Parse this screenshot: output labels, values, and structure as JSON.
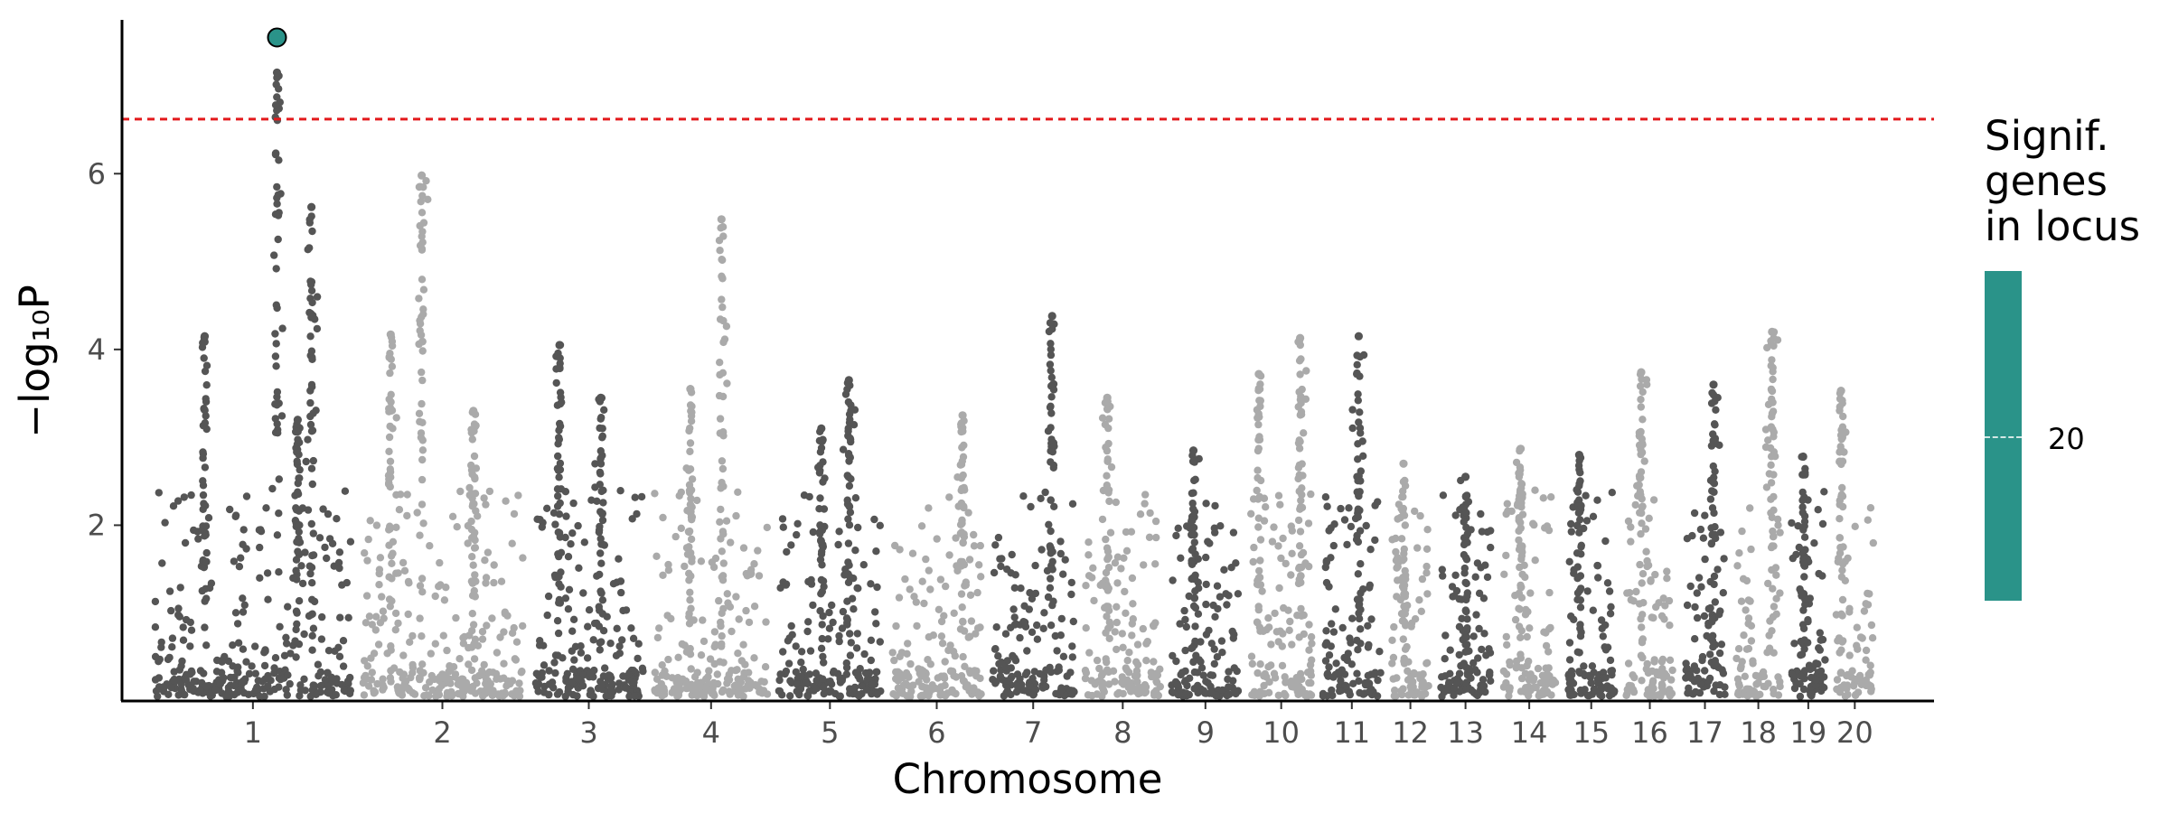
{
  "chart_data": {
    "type": "scatter",
    "subtype": "manhattan",
    "xlabel": "Chromosome",
    "ylabel": "−log₁₀P",
    "ylim": [
      0,
      7.75
    ],
    "yticks": [
      2,
      4,
      6
    ],
    "significance_threshold": 6.62,
    "significance_line_color": "#e31a1c",
    "chromosomes": [
      "1",
      "2",
      "3",
      "4",
      "5",
      "6",
      "7",
      "8",
      "9",
      "10",
      "11",
      "12",
      "13",
      "14",
      "15",
      "16",
      "17",
      "18",
      "19",
      "20"
    ],
    "chromosome_colors": [
      "#555555",
      "#aaaaaa"
    ],
    "chromosome_spans": [
      [
        0.4,
        3.4
      ],
      [
        3.4,
        5.9
      ],
      [
        5.9,
        7.65
      ],
      [
        7.65,
        9.45
      ],
      [
        9.45,
        11.1
      ],
      [
        11.1,
        12.55
      ],
      [
        12.55,
        13.9
      ],
      [
        13.9,
        15.15
      ],
      [
        15.15,
        16.3
      ],
      [
        16.3,
        17.35
      ],
      [
        17.35,
        18.35
      ],
      [
        18.35,
        19.05
      ],
      [
        19.05,
        19.95
      ],
      [
        19.95,
        20.9
      ],
      [
        20.9,
        21.75
      ],
      [
        21.75,
        22.6
      ],
      [
        22.6,
        23.35
      ],
      [
        23.35,
        24.15
      ],
      [
        24.15,
        24.8
      ],
      [
        24.8,
        25.5
      ]
    ],
    "peaks": [
      {
        "chromosome": "1",
        "position": 1.2,
        "neg_log10_p": 4.15
      },
      {
        "chromosome": "1",
        "position": 2.25,
        "neg_log10_p": 7.15
      },
      {
        "chromosome": "1",
        "position": 2.75,
        "neg_log10_p": 5.62
      },
      {
        "chromosome": "1",
        "position": 2.55,
        "neg_log10_p": 3.2
      },
      {
        "chromosome": "2",
        "position": 3.9,
        "neg_log10_p": 4.17
      },
      {
        "chromosome": "2",
        "position": 4.35,
        "neg_log10_p": 5.98
      },
      {
        "chromosome": "2",
        "position": 5.1,
        "neg_log10_p": 3.3
      },
      {
        "chromosome": "3",
        "position": 6.35,
        "neg_log10_p": 4.05
      },
      {
        "chromosome": "3",
        "position": 6.95,
        "neg_log10_p": 3.45
      },
      {
        "chromosome": "4",
        "position": 8.25,
        "neg_log10_p": 3.55
      },
      {
        "chromosome": "4",
        "position": 8.7,
        "neg_log10_p": 5.48
      },
      {
        "chromosome": "5",
        "position": 10.55,
        "neg_log10_p": 3.65
      },
      {
        "chromosome": "5",
        "position": 10.15,
        "neg_log10_p": 3.1
      },
      {
        "chromosome": "6",
        "position": 12.2,
        "neg_log10_p": 3.25
      },
      {
        "chromosome": "7",
        "position": 13.5,
        "neg_log10_p": 4.38
      },
      {
        "chromosome": "8",
        "position": 14.3,
        "neg_log10_p": 3.45
      },
      {
        "chromosome": "9",
        "position": 15.55,
        "neg_log10_p": 2.85
      },
      {
        "chromosome": "10",
        "position": 16.5,
        "neg_log10_p": 3.72
      },
      {
        "chromosome": "10",
        "position": 17.1,
        "neg_log10_p": 4.13
      },
      {
        "chromosome": "11",
        "position": 17.95,
        "neg_log10_p": 4.15
      },
      {
        "chromosome": "12",
        "position": 18.6,
        "neg_log10_p": 2.7
      },
      {
        "chromosome": "13",
        "position": 19.5,
        "neg_log10_p": 2.55
      },
      {
        "chromosome": "14",
        "position": 20.3,
        "neg_log10_p": 2.87
      },
      {
        "chromosome": "15",
        "position": 21.15,
        "neg_log10_p": 2.8
      },
      {
        "chromosome": "16",
        "position": 22.05,
        "neg_log10_p": 3.74
      },
      {
        "chromosome": "17",
        "position": 23.1,
        "neg_log10_p": 3.6
      },
      {
        "chromosome": "18",
        "position": 23.95,
        "neg_log10_p": 4.2
      },
      {
        "chromosome": "19",
        "position": 24.4,
        "neg_log10_p": 2.78
      },
      {
        "chromosome": "20",
        "position": 24.95,
        "neg_log10_p": 3.53
      }
    ],
    "highlighted_point": {
      "chromosome": "1",
      "position": 2.25,
      "neg_log10_p": 7.55,
      "color": "#2a9389"
    },
    "legend": {
      "title": "Signif.\ngenes\nin locus",
      "colorbar_color": "#2a9389",
      "colorbar_tick": "20",
      "placement": "right"
    },
    "grid": false
  }
}
